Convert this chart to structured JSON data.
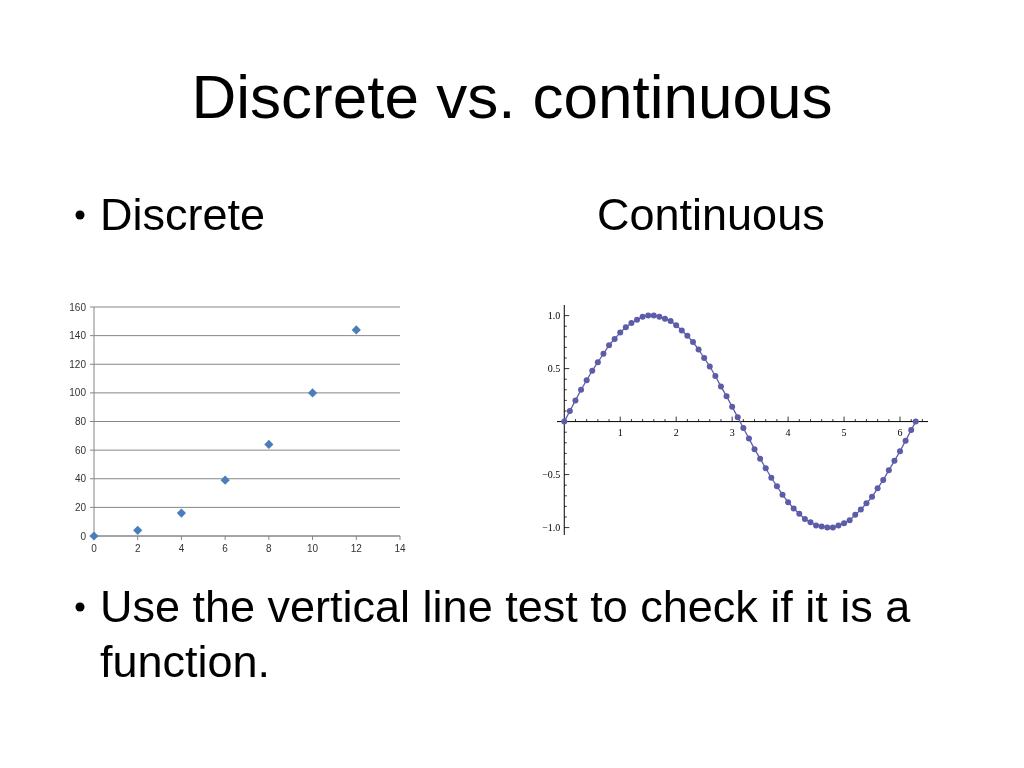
{
  "chart_data": [
    {
      "type": "scatter",
      "title": "Discrete vs. continuous",
      "subtitle": "Discrete",
      "annotations": [
        "Use the vertical line test to check if it is a function."
      ],
      "x": [
        0,
        2,
        4,
        6,
        8,
        10,
        12
      ],
      "values": [
        0,
        4,
        16,
        39,
        64,
        100,
        144
      ],
      "color": "#4a7ebb",
      "marker": "diamond",
      "xlim": [
        0,
        14
      ],
      "ylim": [
        0,
        160
      ],
      "xticks": [
        0,
        2,
        4,
        6,
        8,
        10,
        12,
        14
      ],
      "yticks": [
        0,
        20,
        40,
        60,
        80,
        100,
        120,
        140,
        160
      ],
      "grid": "y"
    },
    {
      "type": "line",
      "subtitle": "Continuous",
      "x": [
        0,
        0.1,
        0.2,
        0.3,
        0.4,
        0.5,
        0.6,
        0.7,
        0.8,
        0.9,
        1.0,
        1.1,
        1.2,
        1.3,
        1.4,
        1.5,
        1.6,
        1.7,
        1.8,
        1.9,
        2.0,
        2.1,
        2.2,
        2.3,
        2.4,
        2.5,
        2.6,
        2.7,
        2.8,
        2.9,
        3.0,
        3.1,
        3.2,
        3.3,
        3.4,
        3.5,
        3.6,
        3.7,
        3.8,
        3.9,
        4.0,
        4.1,
        4.2,
        4.3,
        4.4,
        4.5,
        4.6,
        4.7,
        4.8,
        4.9,
        5.0,
        5.1,
        5.2,
        5.3,
        5.4,
        5.5,
        5.6,
        5.7,
        5.8,
        5.9,
        6.0,
        6.1,
        6.2,
        6.28
      ],
      "values": [
        0,
        0.1,
        0.2,
        0.3,
        0.39,
        0.48,
        0.56,
        0.64,
        0.72,
        0.78,
        0.84,
        0.89,
        0.93,
        0.96,
        0.99,
        1.0,
        1.0,
        0.99,
        0.97,
        0.95,
        0.91,
        0.86,
        0.81,
        0.75,
        0.68,
        0.6,
        0.52,
        0.43,
        0.33,
        0.24,
        0.14,
        0.04,
        -0.06,
        -0.16,
        -0.26,
        -0.35,
        -0.44,
        -0.53,
        -0.61,
        -0.69,
        -0.76,
        -0.82,
        -0.87,
        -0.92,
        -0.95,
        -0.98,
        -0.99,
        -1.0,
        -1.0,
        -0.98,
        -0.96,
        -0.93,
        -0.88,
        -0.83,
        -0.77,
        -0.71,
        -0.63,
        -0.55,
        -0.46,
        -0.37,
        -0.28,
        -0.18,
        -0.08,
        0
      ],
      "color": "#5c5ca8",
      "marker": "circle",
      "xlim": [
        -0.13,
        6.5
      ],
      "ylim": [
        -1.07,
        1.1
      ],
      "xticks": [
        {
          "value": 0.2,
          "label": null
        },
        {
          "value": 0.4,
          "label": null
        },
        {
          "value": 0.6,
          "label": null
        },
        {
          "value": 0.8,
          "label": null
        },
        1,
        {
          "value": 1.2,
          "label": null
        },
        {
          "value": 1.4,
          "label": null
        },
        {
          "value": 1.6,
          "label": null
        },
        {
          "value": 1.8,
          "label": null
        },
        2,
        {
          "value": 2.2,
          "label": null
        },
        {
          "value": 2.4,
          "label": null
        },
        {
          "value": 2.6,
          "label": null
        },
        {
          "value": 2.8,
          "label": null
        },
        3,
        {
          "value": 3.2,
          "label": null
        },
        {
          "value": 3.4,
          "label": null
        },
        {
          "value": 3.6,
          "label": null
        },
        {
          "value": 3.8,
          "label": null
        },
        4,
        {
          "value": 4.2,
          "label": null
        },
        {
          "value": 4.4,
          "label": null
        },
        {
          "value": 4.6,
          "label": null
        },
        {
          "value": 4.8,
          "label": null
        },
        5,
        {
          "value": 5.2,
          "label": null
        },
        {
          "value": 5.4,
          "label": null
        },
        {
          "value": 5.6,
          "label": null
        },
        {
          "value": 5.8,
          "label": null
        },
        6,
        {
          "value": 6.2,
          "label": null
        },
        {
          "value": 6.4,
          "label": null
        }
      ],
      "yticks": [
        {
          "value": -1,
          "label": "−1.0"
        },
        {
          "value": -0.9,
          "label": null
        },
        {
          "value": -0.8,
          "label": null
        },
        {
          "value": -0.7,
          "label": null
        },
        {
          "value": -0.6,
          "label": null
        },
        {
          "value": -0.5,
          "label": "−0.5"
        },
        {
          "value": -0.4,
          "label": null
        },
        {
          "value": -0.3,
          "label": null
        },
        {
          "value": -0.2,
          "label": null
        },
        {
          "value": -0.1,
          "label": null
        },
        {
          "value": 0.1,
          "label": null
        },
        {
          "value": 0.2,
          "label": null
        },
        {
          "value": 0.3,
          "label": null
        },
        {
          "value": 0.4,
          "label": null
        },
        {
          "value": 0.5,
          "label": "0.5"
        },
        {
          "value": 0.6,
          "label": null
        },
        {
          "value": 0.7,
          "label": null
        },
        {
          "value": 0.8,
          "label": null
        },
        {
          "value": 0.9,
          "label": null
        },
        {
          "value": 1,
          "label": "1.0"
        }
      ]
    }
  ]
}
